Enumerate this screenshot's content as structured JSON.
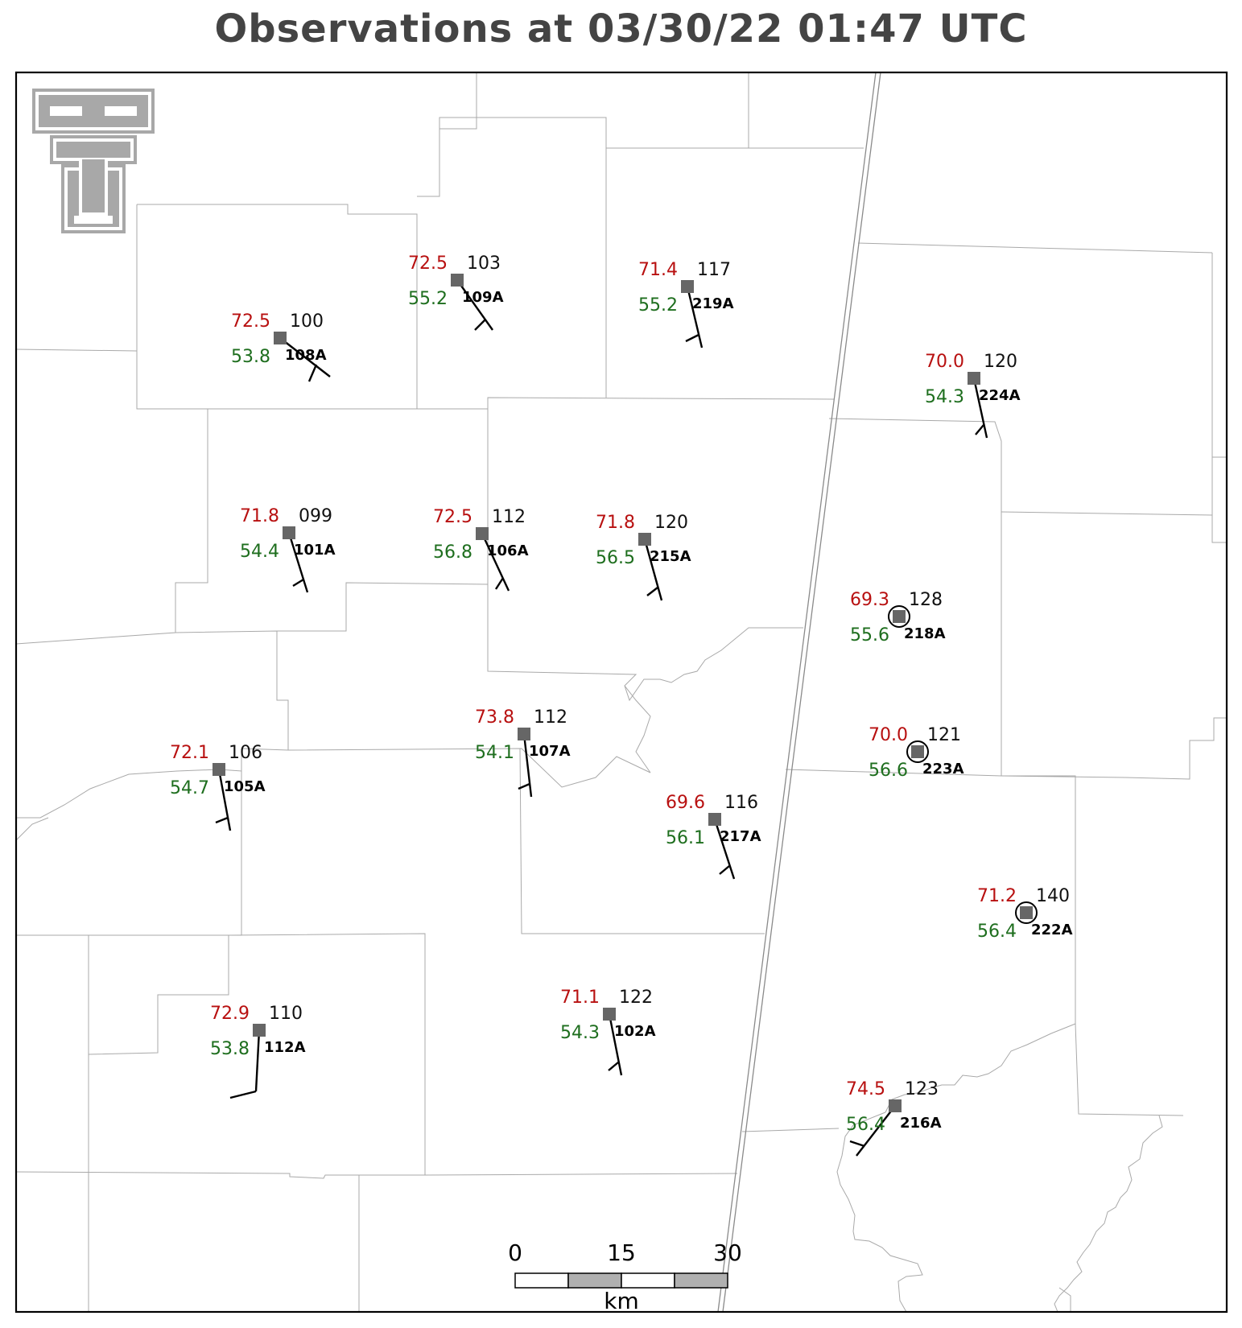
{
  "title": "Observations at 03/30/22 01:47 UTC",
  "logo": {
    "name": "double-t-logo"
  },
  "colors": {
    "temperature": "#b81010",
    "dewpoint": "#1e6e1e",
    "pressure": "#111111",
    "station_marker": "#666666",
    "county_lines": "#a9a9a9",
    "title": "#444444"
  },
  "stations": [
    {
      "id": "108A",
      "temp": "72.5",
      "dewpoint": "53.8",
      "pressure": "100"
    },
    {
      "id": "109A",
      "temp": "72.5",
      "dewpoint": "55.2",
      "pressure": "103"
    },
    {
      "id": "219A",
      "temp": "71.4",
      "dewpoint": "55.2",
      "pressure": "117"
    },
    {
      "id": "224A",
      "temp": "70.0",
      "dewpoint": "54.3",
      "pressure": "120"
    },
    {
      "id": "101A",
      "temp": "71.8",
      "dewpoint": "54.4",
      "pressure": "099"
    },
    {
      "id": "106A",
      "temp": "72.5",
      "dewpoint": "56.8",
      "pressure": "112"
    },
    {
      "id": "215A",
      "temp": "71.8",
      "dewpoint": "56.5",
      "pressure": "120"
    },
    {
      "id": "218A",
      "temp": "69.3",
      "dewpoint": "55.6",
      "pressure": "128"
    },
    {
      "id": "107A",
      "temp": "73.8",
      "dewpoint": "54.1",
      "pressure": "112"
    },
    {
      "id": "105A",
      "temp": "72.1",
      "dewpoint": "54.7",
      "pressure": "106"
    },
    {
      "id": "223A",
      "temp": "70.0",
      "dewpoint": "56.6",
      "pressure": "121"
    },
    {
      "id": "217A",
      "temp": "69.6",
      "dewpoint": "56.1",
      "pressure": "116"
    },
    {
      "id": "222A",
      "temp": "71.2",
      "dewpoint": "56.4",
      "pressure": "140"
    },
    {
      "id": "112A",
      "temp": "72.9",
      "dewpoint": "53.8",
      "pressure": "110"
    },
    {
      "id": "102A",
      "temp": "71.1",
      "dewpoint": "54.3",
      "pressure": "122"
    },
    {
      "id": "216A",
      "temp": "74.5",
      "dewpoint": "56.4",
      "pressure": "123"
    }
  ],
  "scale_bar": {
    "labels": [
      "0",
      "15",
      "30"
    ],
    "unit": "km"
  }
}
